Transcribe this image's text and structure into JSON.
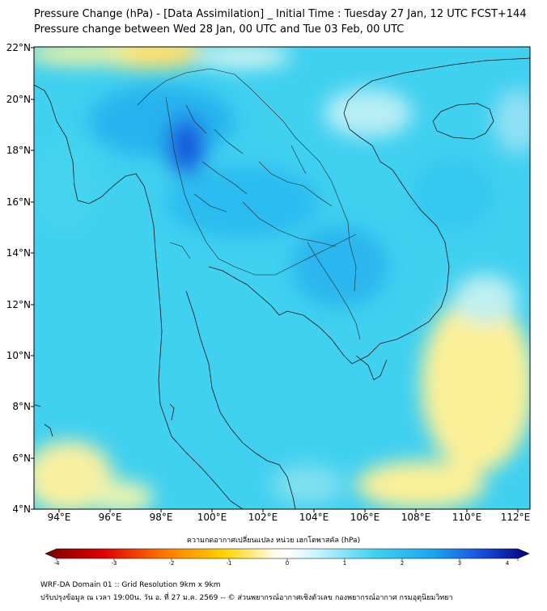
{
  "header": {
    "title_line1": "Pressure Change (hPa) - [Data Assimilation] _ Initial Time : Tuesday 27 Jan, 12 UTC FCST+144",
    "title_line2": "Pressure change between Wed 28 Jan, 00 UTC and Tue 03 Feb, 00 UTC"
  },
  "map": {
    "lat_labels": [
      "22°N",
      "20°N",
      "18°N",
      "16°N",
      "14°N",
      "12°N",
      "10°N",
      "8°N",
      "6°N",
      "4°N"
    ],
    "lon_labels": [
      "94°E",
      "96°E",
      "98°E",
      "100°E",
      "102°E",
      "104°E",
      "106°E",
      "108°E",
      "110°E",
      "112°E"
    ],
    "colors": {
      "background": "#3fd3f0",
      "high": "#1763e0",
      "low": "#fff07a",
      "coast": "#111111"
    }
  },
  "colorbar": {
    "title": "ความกดอากาศเปลี่ยนแปลง หน่วย เฮกโตพาสคัล (hPa)",
    "ticks": [
      "-4",
      "-3",
      "-2",
      "-1",
      "0",
      "1",
      "2",
      "3",
      "4"
    ]
  },
  "footer": {
    "line1": "WRF-DA Domain 01 :: Grid Resolution 9km x 9km",
    "line2": "ปรับปรุงข้อมูล ณ เวลา 19:00น. วัน อ. ที่ 27 ม.ค. 2569 -- © ส่วนพยากรณ์อากาศเชิงตัวเลข กองพยากรณ์อากาศ กรมอุตุนิยมวิทยา"
  }
}
